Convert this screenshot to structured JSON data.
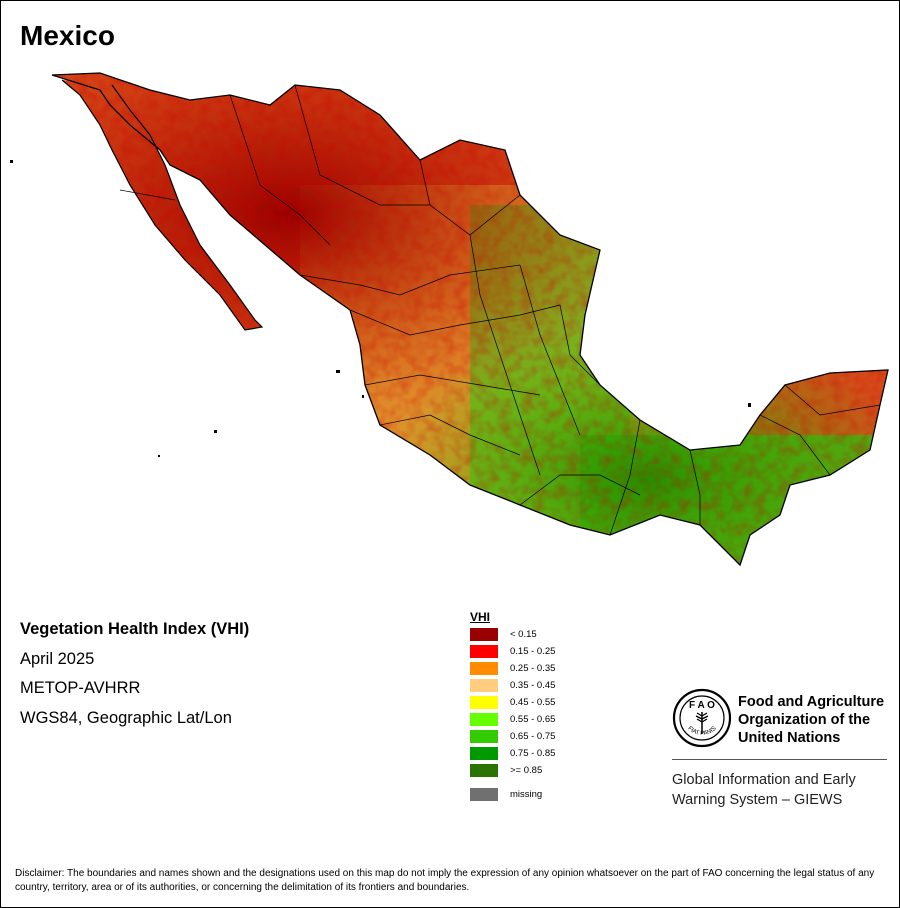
{
  "map": {
    "title": "Mexico",
    "info": {
      "index_name": "Vegetation Health Index (VHI)",
      "period": "April 2025",
      "sensor": "METOP-AVHRR",
      "projection": "WGS84, Geographic Lat/Lon"
    },
    "legend": {
      "title": "VHI",
      "classes": [
        {
          "label": "< 0.15",
          "color": "#990000"
        },
        {
          "label": "0.15 - 0.25",
          "color": "#ff0000"
        },
        {
          "label": "0.25 - 0.35",
          "color": "#ff8c00"
        },
        {
          "label": "0.35 - 0.45",
          "color": "#ffcc80"
        },
        {
          "label": "0.45 - 0.55",
          "color": "#ffff00"
        },
        {
          "label": "0.55 - 0.65",
          "color": "#66ff00"
        },
        {
          "label": "0.65 - 0.75",
          "color": "#33cc00"
        },
        {
          "label": "0.75 - 0.85",
          "color": "#009900"
        },
        {
          "label": ">= 0.85",
          "color": "#2a7300"
        }
      ],
      "missing": {
        "label": "missing",
        "color": "#707070"
      }
    },
    "organization": {
      "name_line1": "Food and Agriculture",
      "name_line2": "Organization of the",
      "name_line3": "United Nations",
      "logo_text": "FIAT PANIS",
      "system_line1": "Global Information and Early",
      "system_line2": "Warning System – GIEWS"
    },
    "disclaimer": "Disclaimer: The boundaries and names shown and the designations used on this map do not imply the expression of any opinion whatsoever on the part of FAO concerning the legal status of any country, territory, area or of its authorities, or concerning the delimitation of its frontiers and boundaries."
  }
}
